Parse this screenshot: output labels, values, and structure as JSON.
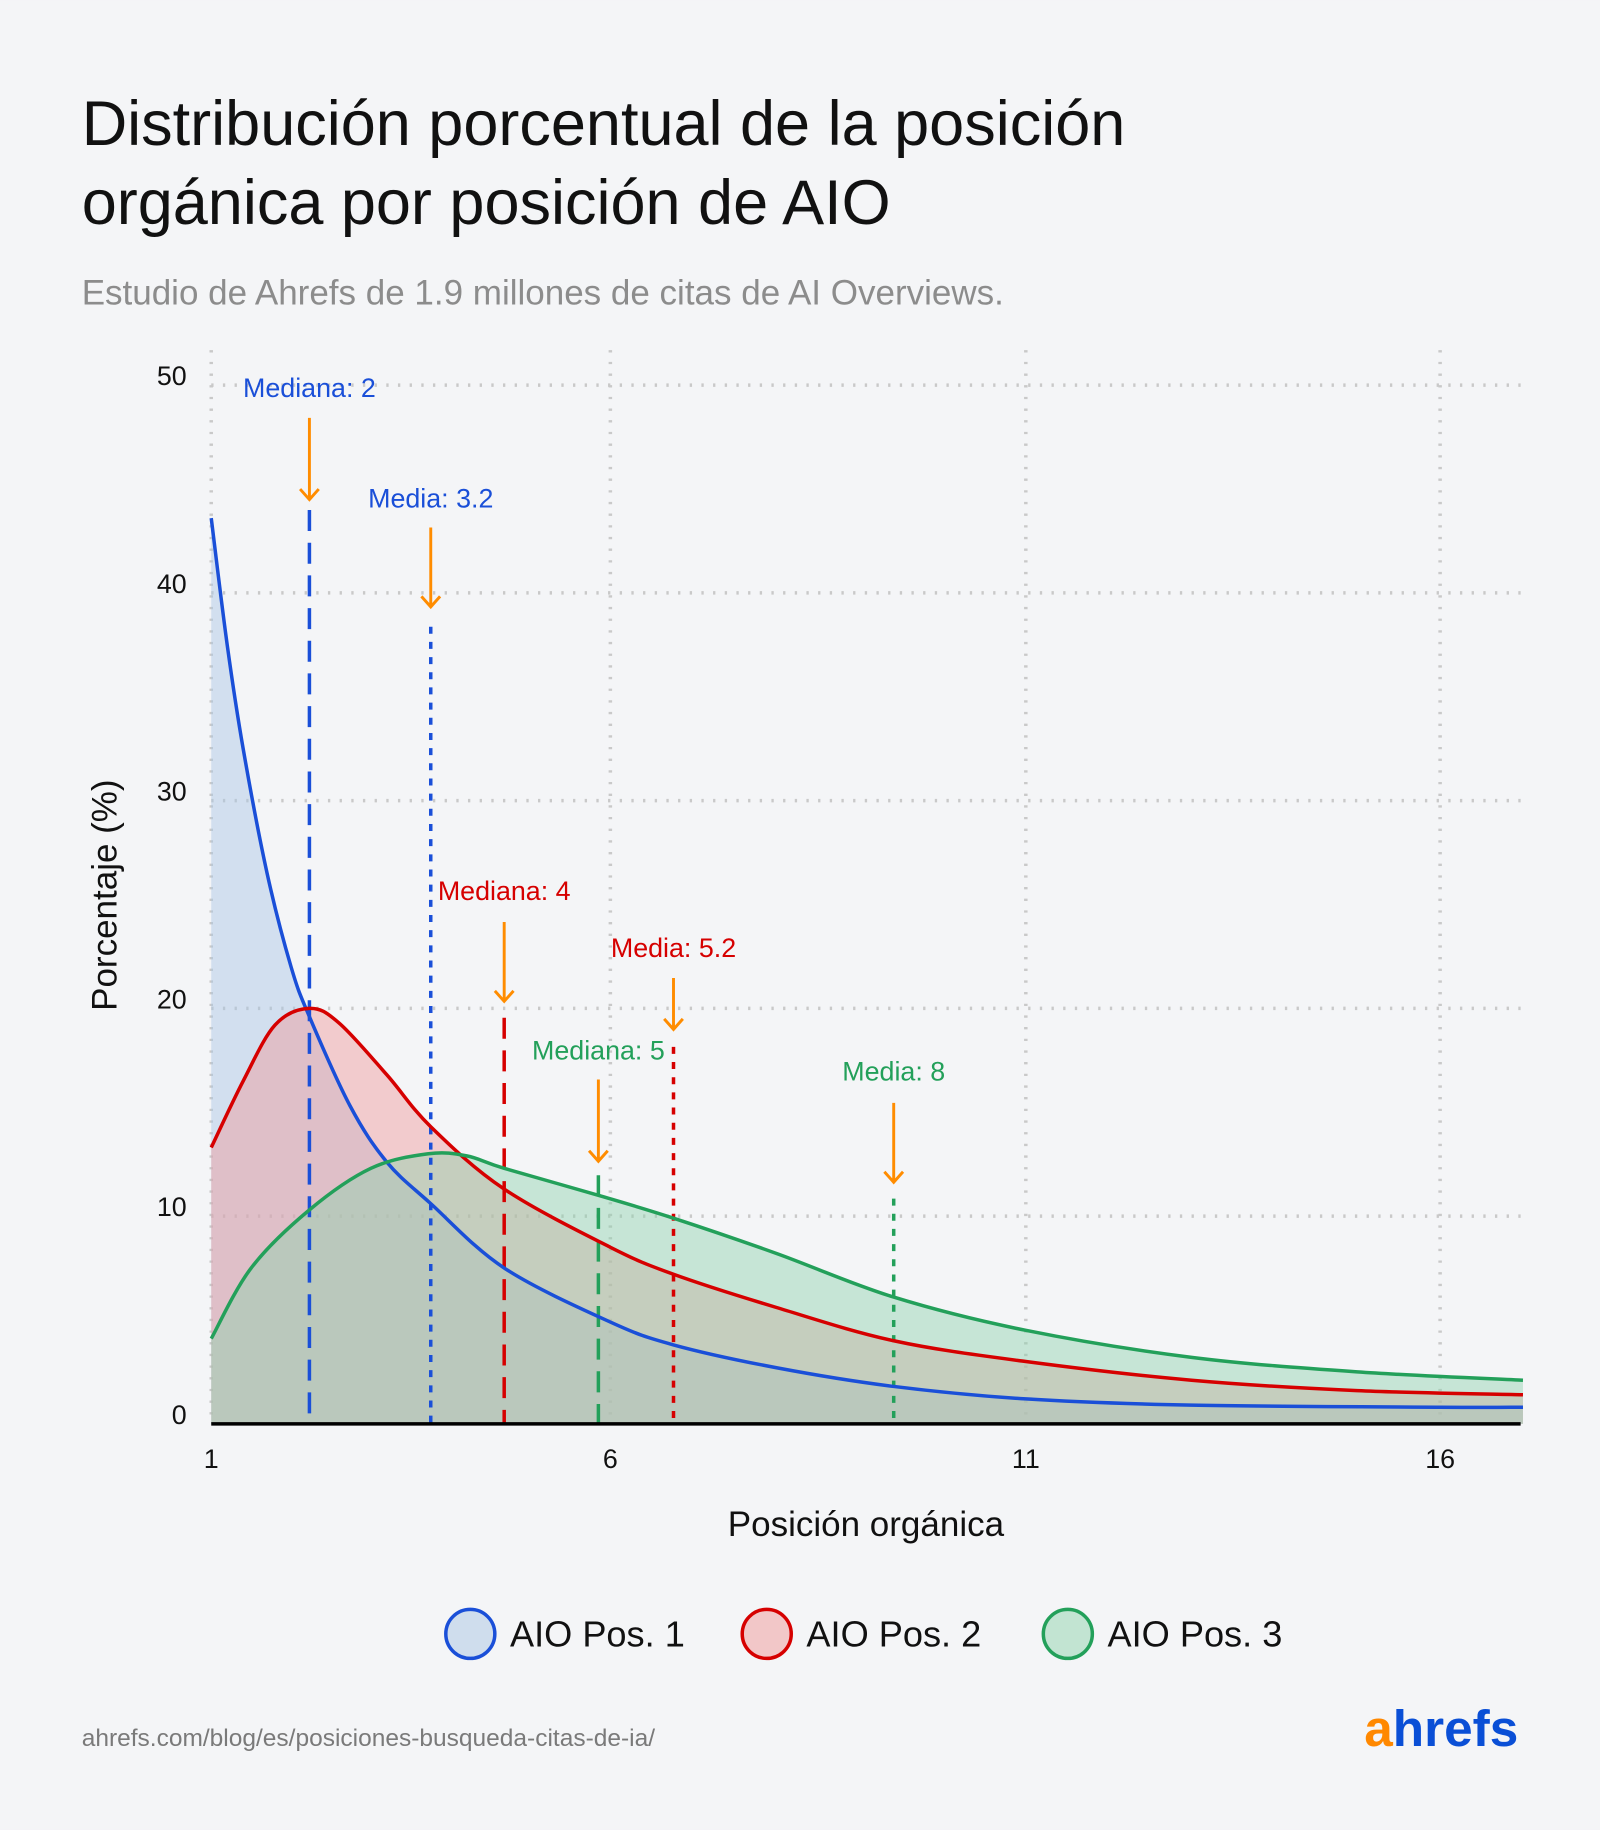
{
  "title_line1": "Distribución porcentual de la posición",
  "title_line2": "orgánica por posición de AIO",
  "subtitle": "Estudio de Ahrefs de 1.9 millones de citas de AI Overviews.",
  "footer_url": "ahrefs.com/blog/es/posiciones-busqueda-citas-de-ia/",
  "logo": {
    "a": "a",
    "rest": "hrefs",
    "a_color": "#ff8800",
    "rest_color": "#0a4fd6"
  },
  "chart_data": {
    "type": "area",
    "title": "Distribución porcentual de la posición orgánica por posición de AIO",
    "xlabel": "Posición orgánica",
    "ylabel": "Porcentaje (%)",
    "xlim": [
      1,
      17
    ],
    "ylim": [
      0,
      50
    ],
    "x_ticks": [
      "1",
      "6",
      "11",
      "16"
    ],
    "y_ticks": [
      "0",
      "10",
      "20",
      "30",
      "40",
      "50"
    ],
    "grid": true,
    "legend_position": "bottom",
    "arrow_color": "#ff8c00",
    "series": [
      {
        "name": "AIO Pos. 1",
        "color": "#1a4fd8",
        "fill": "#a9c6e4",
        "points": [
          [
            1,
            43.6
          ],
          [
            1.2,
            37.5
          ],
          [
            1.4,
            32.5
          ],
          [
            1.7,
            26.5
          ],
          [
            2,
            22
          ],
          [
            2.23,
            19.6
          ],
          [
            2.74,
            15.3
          ],
          [
            3.2,
            12.6
          ],
          [
            3.75,
            10.6
          ],
          [
            4.67,
            7.5
          ],
          [
            6,
            4.9
          ],
          [
            6.76,
            3.8
          ],
          [
            8,
            2.7
          ],
          [
            9.41,
            1.8
          ],
          [
            11,
            1.2
          ],
          [
            13,
            0.9
          ],
          [
            16,
            0.8
          ],
          [
            17,
            0.8
          ]
        ]
      },
      {
        "name": "AIO Pos. 2",
        "color": "#d60000",
        "fill": "#f09a9a",
        "points": [
          [
            1,
            13.3
          ],
          [
            1.4,
            16.5
          ],
          [
            1.8,
            19.2
          ],
          [
            2.23,
            20.0
          ],
          [
            2.6,
            19.3
          ],
          [
            3.2,
            16.8
          ],
          [
            3.75,
            14.3
          ],
          [
            4.67,
            11.3
          ],
          [
            6,
            8.5
          ],
          [
            6.76,
            7.2
          ],
          [
            8,
            5.6
          ],
          [
            9.41,
            4.0
          ],
          [
            11,
            3.0
          ],
          [
            13,
            2.1
          ],
          [
            15,
            1.6
          ],
          [
            17,
            1.4
          ]
        ]
      },
      {
        "name": "AIO Pos. 3",
        "color": "#23a05a",
        "fill": "#8fd3ad",
        "points": [
          [
            1,
            4.1
          ],
          [
            1.5,
            7.5
          ],
          [
            2.23,
            10.3
          ],
          [
            3,
            12.3
          ],
          [
            3.72,
            13.0
          ],
          [
            4.2,
            12.9
          ],
          [
            4.67,
            12.3
          ],
          [
            5.85,
            11.0
          ],
          [
            6.76,
            9.9
          ],
          [
            8,
            8.2
          ],
          [
            9.41,
            6.1
          ],
          [
            11,
            4.5
          ],
          [
            13,
            3.2
          ],
          [
            15,
            2.5
          ],
          [
            17,
            2.1
          ]
        ]
      }
    ],
    "annotations": [
      {
        "label": "Mediana: 2",
        "series": 0,
        "kind": "median",
        "x": 2.23
      },
      {
        "label": "Media: 3.2",
        "series": 0,
        "kind": "mean",
        "x": 3.75
      },
      {
        "label": "Mediana: 4",
        "series": 1,
        "kind": "median",
        "x": 4.67
      },
      {
        "label": "Media: 5.2",
        "series": 1,
        "kind": "mean",
        "x": 6.76
      },
      {
        "label": "Mediana: 5",
        "series": 2,
        "kind": "median",
        "x": 5.85
      },
      {
        "label": "Media: 8",
        "series": 2,
        "kind": "mean",
        "x": 9.41
      }
    ]
  }
}
